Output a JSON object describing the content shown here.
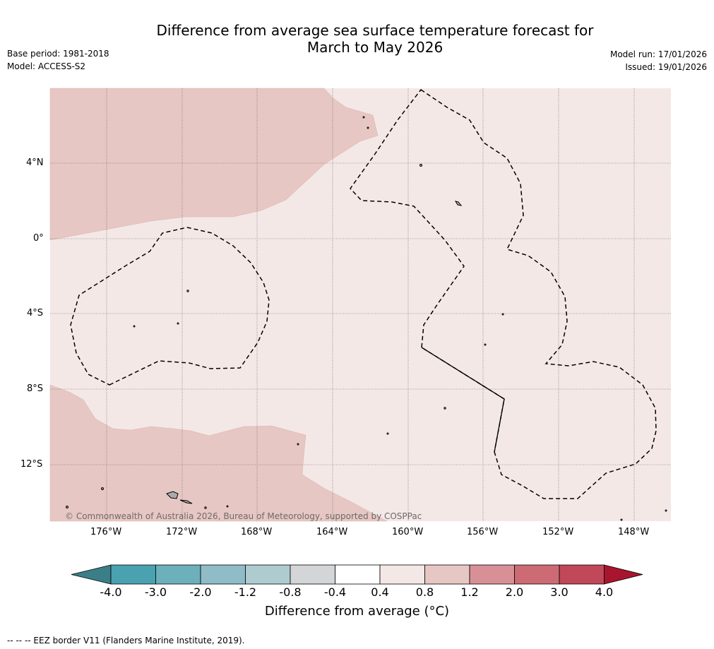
{
  "title_line1": "Difference from average sea surface temperature forecast for",
  "title_line2": "March to May 2026",
  "base_period": "Base period: 1981-2018",
  "model": "Model: ACCESS-S2",
  "model_run": "Model run: 17/01/2026",
  "issued": "Issued: 19/01/2026",
  "copyright": "© Commonwealth of Australia 2026, Bureau of Meteorology, supported by COSPPac",
  "lat_labels": [
    "4°N",
    "0°",
    "4°S",
    "8°S",
    "12°S"
  ],
  "lon_labels": [
    "176°W",
    "172°W",
    "168°W",
    "164°W",
    "160°W",
    "156°W",
    "152°W",
    "148°W"
  ],
  "colorbar": {
    "title": "Difference from average (°C)",
    "tick_labels": [
      "-4.0",
      "-3.0",
      "-2.0",
      "-1.2",
      "-0.8",
      "-0.4",
      "0.4",
      "0.8",
      "1.2",
      "2.0",
      "3.0",
      "4.0"
    ],
    "below_color": "#3a7f87",
    "above_color": "#a9152f",
    "colors": [
      "#4aa2b1",
      "#6cb0bc",
      "#8fbcc6",
      "#aecbd0",
      "#d4d5d6",
      "#ffffff",
      "#f4e8e7",
      "#e7c7c3",
      "#d89097",
      "#cc6b74",
      "#c04859"
    ]
  },
  "fill_colors": {
    "band_04_08": "#f4e8e7",
    "band_08_12": "#e7c7c3"
  },
  "footnote": "--  --  -- EEZ border V11 (Flanders Marine Institute, 2019)."
}
